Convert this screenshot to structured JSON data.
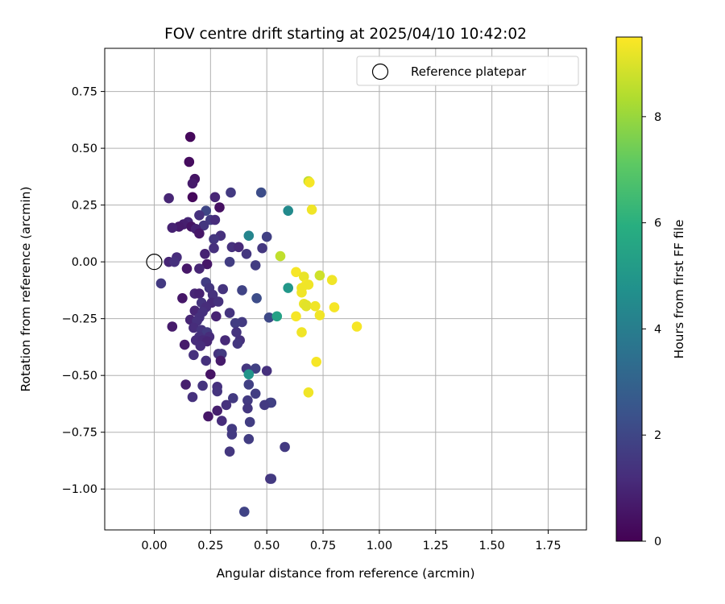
{
  "chart_data": {
    "type": "scatter",
    "title": "FOV centre drift starting at 2025/04/10 10:42:02",
    "xlabel": "Angular distance from reference (arcmin)",
    "ylabel": "Rotation from reference (arcmin)",
    "xlim": [
      -0.22,
      1.92
    ],
    "ylim": [
      -1.18,
      0.94
    ],
    "xticks": [
      "0.00",
      "0.25",
      "0.50",
      "0.75",
      "1.00",
      "1.25",
      "1.50",
      "1.75"
    ],
    "xtick_values": [
      0,
      0.25,
      0.5,
      0.75,
      1.0,
      1.25,
      1.5,
      1.75
    ],
    "yticks": [
      "0.75",
      "0.50",
      "0.25",
      "0.00",
      "−0.25",
      "−0.50",
      "−0.75",
      "−1.00"
    ],
    "ytick_values": [
      0.75,
      0.5,
      0.25,
      0,
      -0.25,
      -0.5,
      -0.75,
      -1.0
    ],
    "grid": true,
    "legend": {
      "position": "top-right",
      "label": "Reference platepar"
    },
    "reference_point": {
      "x": 0,
      "y": 0
    },
    "colorbar": {
      "label": "Hours from first FF file",
      "range": [
        0,
        9.5
      ],
      "ticks": [
        "0",
        "2",
        "4",
        "6",
        "8"
      ],
      "tick_values": [
        0,
        2,
        4,
        6,
        8
      ],
      "colormap": "viridis"
    },
    "points": [
      [
        0.16,
        0.55,
        0.2
      ],
      [
        0.155,
        0.44,
        0.3
      ],
      [
        0.18,
        0.365,
        0.5
      ],
      [
        0.17,
        0.345,
        0.7
      ],
      [
        0.17,
        0.285,
        0.2
      ],
      [
        0.065,
        0.28,
        1.0
      ],
      [
        0.27,
        0.285,
        1.0
      ],
      [
        0.29,
        0.24,
        0.4
      ],
      [
        0.34,
        0.305,
        1.6
      ],
      [
        0.475,
        0.305,
        2.2
      ],
      [
        0.23,
        0.225,
        2.0
      ],
      [
        0.2,
        0.205,
        1.3
      ],
      [
        0.25,
        0.185,
        1.6
      ],
      [
        0.27,
        0.185,
        1.2
      ],
      [
        0.15,
        0.175,
        1.0
      ],
      [
        0.13,
        0.165,
        0.8
      ],
      [
        0.11,
        0.155,
        0.7
      ],
      [
        0.08,
        0.15,
        0.9
      ],
      [
        0.165,
        0.155,
        0.5
      ],
      [
        0.22,
        0.16,
        1.5
      ],
      [
        0.185,
        0.145,
        0.9
      ],
      [
        0.2,
        0.125,
        0.6
      ],
      [
        0.295,
        0.115,
        1.3
      ],
      [
        0.265,
        0.1,
        1.5
      ],
      [
        0.5,
        0.11,
        1.8
      ],
      [
        0.345,
        0.065,
        1.3
      ],
      [
        0.375,
        0.065,
        1.1
      ],
      [
        0.265,
        0.06,
        1.3
      ],
      [
        0.225,
        0.035,
        0.9
      ],
      [
        0.41,
        0.035,
        1.5
      ],
      [
        0.48,
        0.06,
        1.5
      ],
      [
        0.1,
        0.02,
        1.2
      ],
      [
        0.065,
        0.0,
        1.0
      ],
      [
        0.09,
        0.0,
        1.3
      ],
      [
        0.235,
        -0.01,
        0.6
      ],
      [
        0.335,
        0.0,
        1.7
      ],
      [
        0.45,
        -0.015,
        1.7
      ],
      [
        0.145,
        -0.03,
        0.6
      ],
      [
        0.2,
        -0.03,
        1.0
      ],
      [
        0.03,
        -0.095,
        1.6
      ],
      [
        0.23,
        -0.09,
        1.7
      ],
      [
        0.245,
        -0.115,
        1.5
      ],
      [
        0.305,
        -0.12,
        1.4
      ],
      [
        0.18,
        -0.14,
        1.0
      ],
      [
        0.2,
        -0.14,
        0.9
      ],
      [
        0.26,
        -0.145,
        1.3
      ],
      [
        0.39,
        -0.125,
        1.9
      ],
      [
        0.125,
        -0.16,
        0.6
      ],
      [
        0.455,
        -0.16,
        2.2
      ],
      [
        0.21,
        -0.18,
        1.4
      ],
      [
        0.255,
        -0.18,
        1.1
      ],
      [
        0.285,
        -0.175,
        1.3
      ],
      [
        0.23,
        -0.2,
        1.2
      ],
      [
        0.18,
        -0.215,
        1.0
      ],
      [
        0.215,
        -0.22,
        1.3
      ],
      [
        0.2,
        -0.245,
        1.3
      ],
      [
        0.335,
        -0.225,
        1.4
      ],
      [
        0.16,
        -0.255,
        1.0
      ],
      [
        0.19,
        -0.26,
        1.3
      ],
      [
        0.275,
        -0.24,
        0.9
      ],
      [
        0.39,
        -0.265,
        1.6
      ],
      [
        0.36,
        -0.27,
        1.7
      ],
      [
        0.51,
        -0.245,
        2.1
      ],
      [
        0.08,
        -0.285,
        0.7
      ],
      [
        0.175,
        -0.29,
        1.2
      ],
      [
        0.21,
        -0.3,
        1.4
      ],
      [
        0.235,
        -0.31,
        1.6
      ],
      [
        0.365,
        -0.31,
        1.4
      ],
      [
        0.2,
        -0.33,
        1.3
      ],
      [
        0.245,
        -0.33,
        1.2
      ],
      [
        0.185,
        -0.345,
        1.2
      ],
      [
        0.215,
        -0.345,
        1.1
      ],
      [
        0.235,
        -0.35,
        1.0
      ],
      [
        0.315,
        -0.345,
        1.1
      ],
      [
        0.38,
        -0.345,
        1.3
      ],
      [
        0.135,
        -0.365,
        0.7
      ],
      [
        0.205,
        -0.37,
        1.2
      ],
      [
        0.37,
        -0.36,
        1.5
      ],
      [
        0.175,
        -0.41,
        1.3
      ],
      [
        0.285,
        -0.405,
        1.4
      ],
      [
        0.3,
        -0.405,
        1.6
      ],
      [
        0.23,
        -0.435,
        1.3
      ],
      [
        0.295,
        -0.435,
        0.7
      ],
      [
        0.41,
        -0.47,
        1.5
      ],
      [
        0.45,
        -0.47,
        1.8
      ],
      [
        0.5,
        -0.48,
        1.3
      ],
      [
        0.42,
        -0.495,
        4.9
      ],
      [
        0.25,
        -0.495,
        0.5
      ],
      [
        0.14,
        -0.54,
        0.8
      ],
      [
        0.215,
        -0.545,
        1.4
      ],
      [
        0.28,
        -0.55,
        1.3
      ],
      [
        0.42,
        -0.54,
        1.8
      ],
      [
        0.45,
        -0.58,
        1.7
      ],
      [
        0.28,
        -0.57,
        1.4
      ],
      [
        0.17,
        -0.595,
        1.3
      ],
      [
        0.35,
        -0.6,
        1.6
      ],
      [
        0.415,
        -0.61,
        1.6
      ],
      [
        0.515,
        -0.62,
        1.7
      ],
      [
        0.52,
        -0.62,
        1.8
      ],
      [
        0.49,
        -0.63,
        1.6
      ],
      [
        0.28,
        -0.655,
        0.8
      ],
      [
        0.32,
        -0.63,
        1.3
      ],
      [
        0.415,
        -0.645,
        1.5
      ],
      [
        0.24,
        -0.68,
        0.6
      ],
      [
        0.3,
        -0.7,
        1.2
      ],
      [
        0.425,
        -0.705,
        1.7
      ],
      [
        0.345,
        -0.735,
        1.6
      ],
      [
        0.345,
        -0.76,
        1.6
      ],
      [
        0.42,
        -0.78,
        1.7
      ],
      [
        0.58,
        -0.815,
        1.6
      ],
      [
        0.335,
        -0.835,
        1.5
      ],
      [
        0.515,
        -0.955,
        1.3
      ],
      [
        0.52,
        -0.955,
        1.6
      ],
      [
        0.4,
        -1.1,
        1.9
      ],
      [
        0.42,
        0.115,
        4.3
      ],
      [
        0.595,
        0.225,
        4.5
      ],
      [
        0.56,
        0.025,
        8.6
      ],
      [
        0.595,
        -0.115,
        5.0
      ],
      [
        0.545,
        -0.24,
        5.4
      ],
      [
        0.685,
        0.355,
        8.6
      ],
      [
        0.69,
        0.35,
        9.4
      ],
      [
        0.7,
        0.23,
        9.3
      ],
      [
        0.63,
        -0.045,
        9.4
      ],
      [
        0.665,
        -0.065,
        9.2
      ],
      [
        0.735,
        -0.06,
        8.8
      ],
      [
        0.79,
        -0.08,
        9.3
      ],
      [
        0.675,
        -0.1,
        9.4
      ],
      [
        0.685,
        -0.1,
        9.3
      ],
      [
        0.655,
        -0.115,
        9.3
      ],
      [
        0.655,
        -0.135,
        9.3
      ],
      [
        0.665,
        -0.185,
        9.2
      ],
      [
        0.675,
        -0.19,
        9.1
      ],
      [
        0.675,
        -0.195,
        9.1
      ],
      [
        0.715,
        -0.195,
        9.3
      ],
      [
        0.8,
        -0.2,
        9.4
      ],
      [
        0.63,
        -0.24,
        9.4
      ],
      [
        0.735,
        -0.235,
        9.3
      ],
      [
        0.9,
        -0.285,
        9.4
      ],
      [
        0.655,
        -0.31,
        9.3
      ],
      [
        0.72,
        -0.44,
        9.4
      ],
      [
        0.685,
        -0.575,
        9.3
      ]
    ]
  }
}
